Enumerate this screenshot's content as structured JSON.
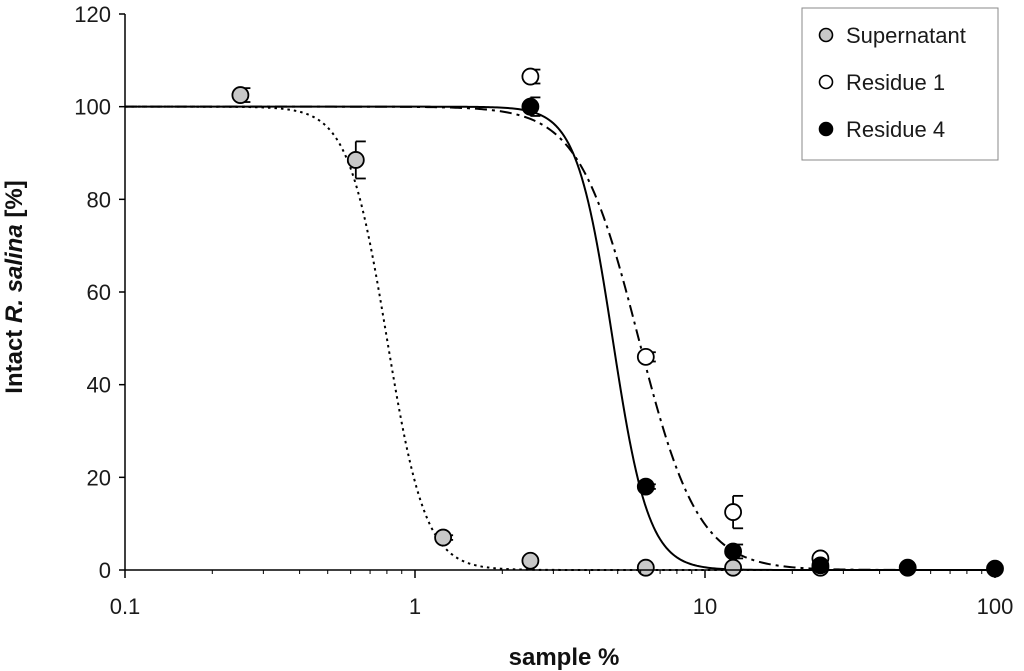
{
  "chart_data": {
    "type": "scatter",
    "title": "",
    "xlabel": "sample %",
    "ylabel_parts": [
      "Intact ",
      "R. salina",
      " [%]"
    ],
    "x_scale": "log",
    "xlim": [
      0.1,
      100
    ],
    "ylim": [
      0,
      120
    ],
    "x_ticks": [
      0.1,
      1,
      10,
      100
    ],
    "x_tick_labels": [
      "0.1",
      "1",
      "10",
      "100"
    ],
    "y_ticks": [
      0,
      20,
      40,
      60,
      80,
      100,
      120
    ],
    "y_tick_labels": [
      "0",
      "20",
      "40",
      "60",
      "80",
      "100",
      "120"
    ],
    "grid": false,
    "legend_position": "top-right",
    "series": [
      {
        "name": "Supernatant",
        "marker_fill": "#c8c8c8",
        "line_style": "dotted",
        "points": [
          {
            "x": 0.25,
            "y": 102.5,
            "err": 1.5
          },
          {
            "x": 0.625,
            "y": 88.5,
            "err": 4
          },
          {
            "x": 1.25,
            "y": 7,
            "err": 0.5
          },
          {
            "x": 2.5,
            "y": 2,
            "err": 0
          },
          {
            "x": 6.25,
            "y": 0.5,
            "err": 0
          },
          {
            "x": 12.5,
            "y": 0.5,
            "err": 0
          }
        ],
        "fit": {
          "top": 100,
          "ec50": 0.8,
          "hill": 6.5
        }
      },
      {
        "name": "Residue 1",
        "marker_fill": "#ffffff",
        "line_style": "dash-dot",
        "points": [
          {
            "x": 2.5,
            "y": 106.5,
            "err": 1.5
          },
          {
            "x": 6.25,
            "y": 46,
            "err": 1
          },
          {
            "x": 12.5,
            "y": 12.5,
            "err": 3.5
          },
          {
            "x": 25,
            "y": 2.5,
            "err": 0
          },
          {
            "x": 25,
            "y": 0.5,
            "err": 0
          }
        ],
        "fit": {
          "top": 100,
          "ec50": 5.9,
          "hill": 4.2
        }
      },
      {
        "name": "Residue 4",
        "marker_fill": "#000000",
        "line_style": "solid",
        "points": [
          {
            "x": 2.5,
            "y": 100,
            "err": 2
          },
          {
            "x": 6.25,
            "y": 18,
            "err": 0.5
          },
          {
            "x": 12.5,
            "y": 4,
            "err": 1.5
          },
          {
            "x": 25,
            "y": 1,
            "err": 0
          },
          {
            "x": 50,
            "y": 0.5,
            "err": 0
          },
          {
            "x": 100,
            "y": 0.3,
            "err": 0
          }
        ],
        "fit": {
          "top": 100,
          "ec50": 4.8,
          "hill": 7
        }
      }
    ]
  }
}
